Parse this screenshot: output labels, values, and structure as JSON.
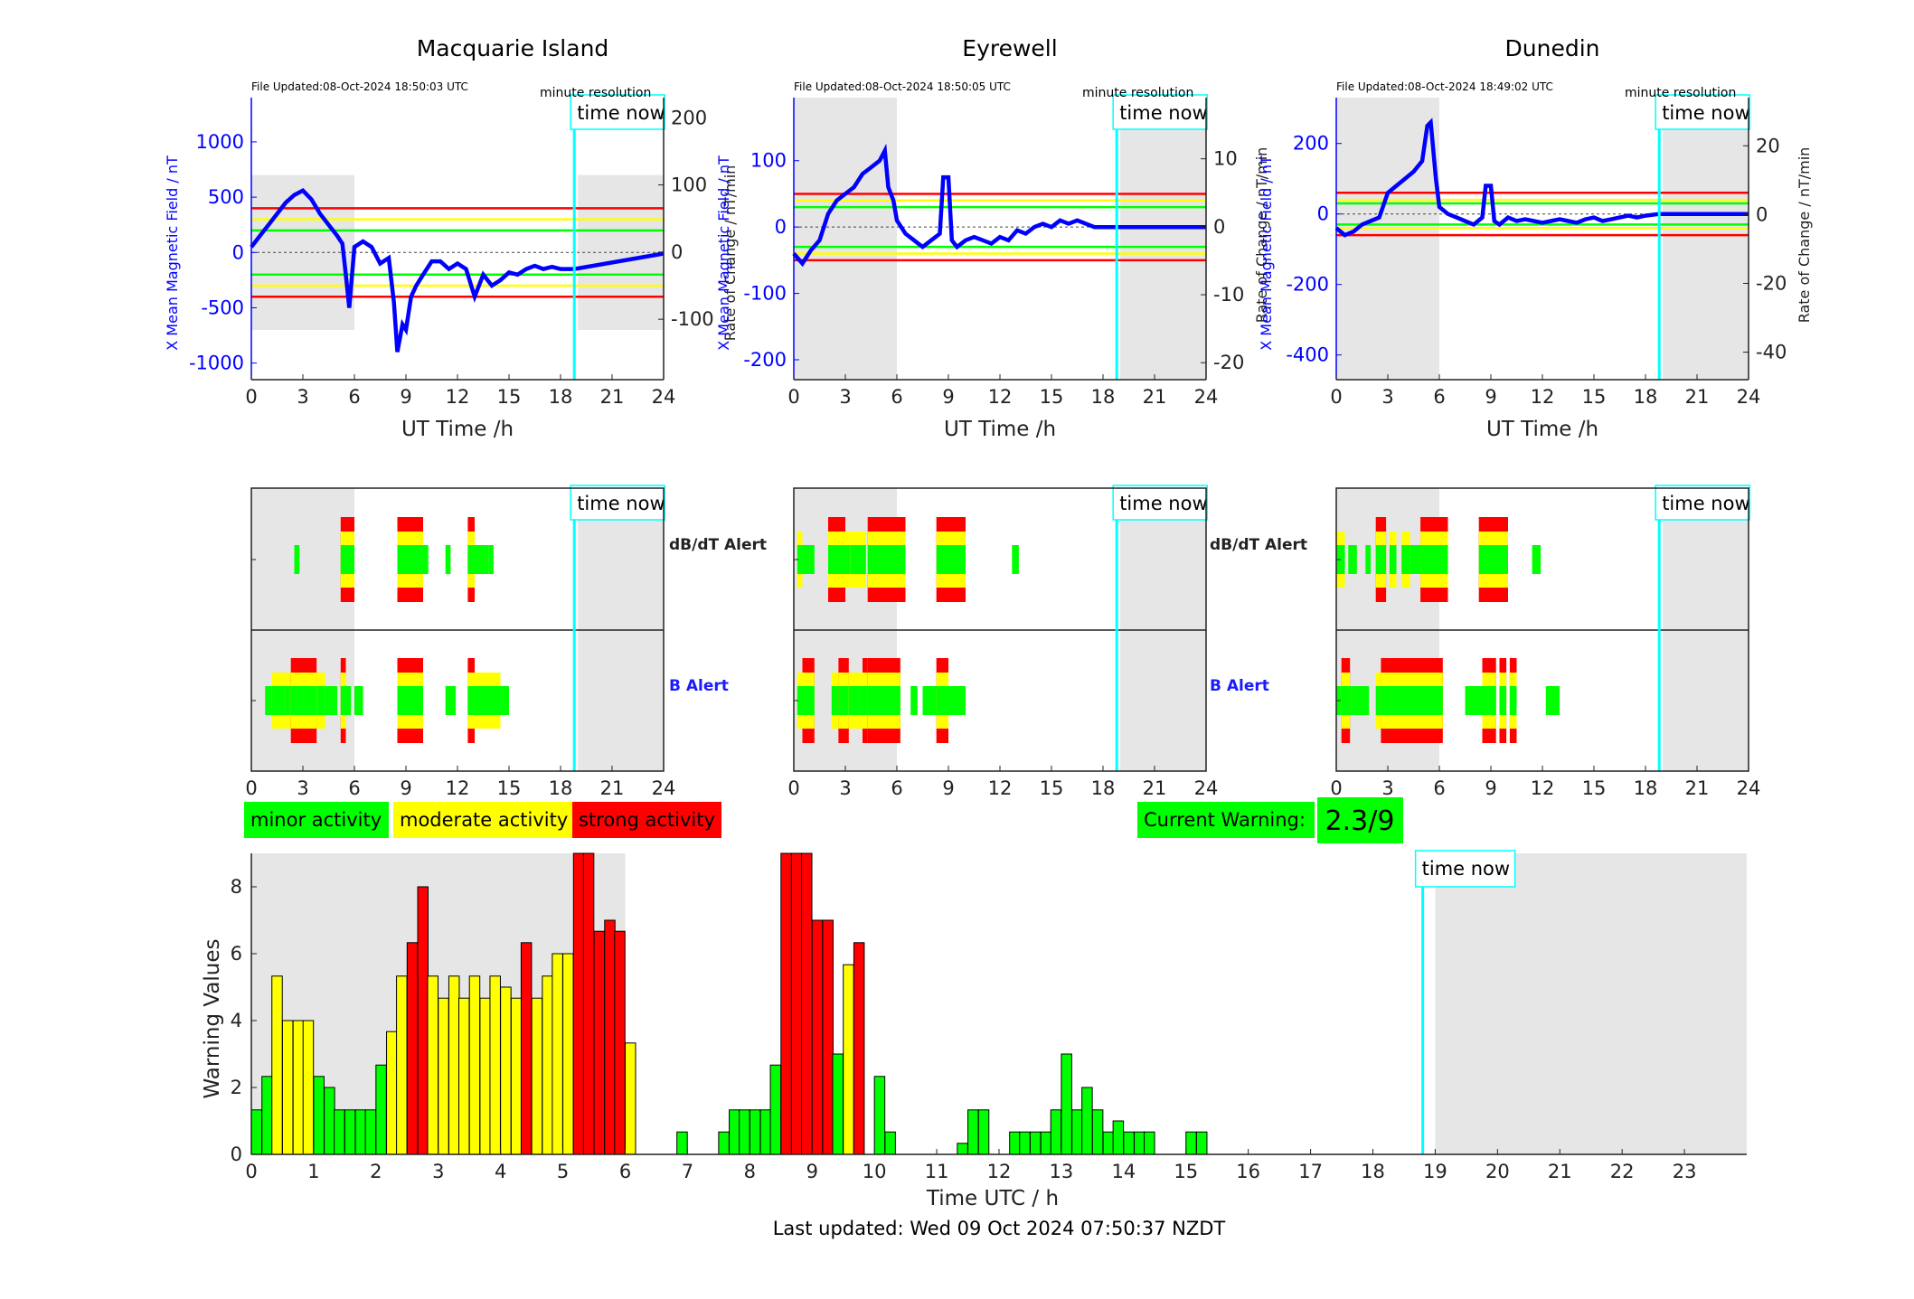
{
  "footer": {
    "last_updated": "Last updated: Wed 09 Oct 2024 07:50:37 NZDT"
  },
  "legend": {
    "minor": "minor activity",
    "moderate": "moderate activity",
    "strong": "strong activity",
    "current_label": "Current Warning:",
    "current_value": "2.3/9"
  },
  "colors": {
    "minor": "#00ff00",
    "moderate": "#ffff00",
    "strong": "#ff0000",
    "now": "#00ffff",
    "field": "#0000ff",
    "shade": "#e6e6e6"
  },
  "time_now_label": "time now",
  "minute_resolution": "minute resolution",
  "alert_labels": {
    "dbdt": "dB/dT Alert",
    "b": "B Alert"
  },
  "chart_data": [
    {
      "type": "line",
      "title": "Macquarie Island",
      "file_updated": "File Updated:08-Oct-2024 18:50:03 UTC",
      "xlabel": "UT Time /h",
      "ylabel_left": "X Mean Magnetic Field / nT",
      "ylabel_right": "Rate of Change / nT/min",
      "xlim": [
        0,
        24
      ],
      "ylim_left": [
        -1150,
        1400
      ],
      "ylim_right": [
        -190,
        230
      ],
      "yticks_left": [
        -1000,
        -500,
        0,
        500,
        1000
      ],
      "yticks_right": [
        -100,
        0,
        100,
        200
      ],
      "xticks": [
        0,
        3,
        6,
        9,
        12,
        15,
        18,
        21,
        24
      ],
      "thresholds": {
        "minor": 200,
        "moderate": 300,
        "strong": 400
      },
      "time_now": 18.8,
      "night_shade": [
        [
          0,
          6
        ],
        [
          19,
          24
        ]
      ],
      "series": [
        {
          "x": [
            0,
            0.5,
            1,
            1.5,
            2,
            2.5,
            3,
            3.5,
            4,
            4.5,
            5,
            5.3,
            5.5,
            5.7,
            6,
            6.5,
            7,
            7.5,
            8,
            8.3,
            8.5,
            8.8,
            9,
            9.3,
            9.6,
            10,
            10.5,
            11,
            11.5,
            12,
            12.5,
            13,
            13.5,
            14,
            14.5,
            15,
            15.5,
            16,
            16.5,
            17,
            17.5,
            18,
            18.8,
            24
          ],
          "y": [
            50,
            150,
            250,
            350,
            450,
            520,
            560,
            480,
            350,
            250,
            150,
            80,
            -200,
            -500,
            50,
            100,
            50,
            -100,
            -50,
            -450,
            -900,
            -650,
            -700,
            -400,
            -300,
            -200,
            -80,
            -80,
            -150,
            -100,
            -150,
            -400,
            -200,
            -300,
            -250,
            -180,
            -200,
            -150,
            -120,
            -150,
            -130,
            -150,
            -150,
            -10
          ]
        }
      ]
    },
    {
      "type": "line",
      "title": "Eyrewell",
      "file_updated": "File Updated:08-Oct-2024 18:50:05 UTC",
      "xlabel": "UT Time /h",
      "ylabel_left": "X Mean Magnetic Field / nT",
      "ylabel_right": "Rate of Change / nT/min",
      "xlim": [
        0,
        24
      ],
      "ylim_left": [
        -230,
        195
      ],
      "ylim_right": [
        -22.5,
        19
      ],
      "yticks_left": [
        -200,
        -100,
        0,
        100
      ],
      "yticks_right": [
        -20,
        -10,
        0,
        10
      ],
      "xticks": [
        0,
        3,
        6,
        9,
        12,
        15,
        18,
        21,
        24
      ],
      "thresholds": {
        "minor": 30,
        "moderate": 40,
        "strong": 50
      },
      "time_now": 18.8,
      "night_shade": [
        [
          0,
          6
        ],
        [
          19,
          24
        ]
      ],
      "series": [
        {
          "x": [
            0,
            0.5,
            1,
            1.5,
            2,
            2.5,
            3,
            3.5,
            4,
            4.5,
            5,
            5.3,
            5.5,
            5.8,
            6,
            6.5,
            7,
            7.5,
            8,
            8.5,
            8.7,
            9,
            9.2,
            9.5,
            10,
            10.5,
            11,
            11.5,
            12,
            12.5,
            13,
            13.5,
            14,
            14.5,
            15,
            15.5,
            16,
            16.5,
            17,
            17.5,
            18,
            18.8,
            24
          ],
          "y": [
            -40,
            -55,
            -35,
            -20,
            20,
            40,
            50,
            60,
            80,
            90,
            100,
            115,
            60,
            40,
            10,
            -10,
            -20,
            -30,
            -20,
            -10,
            75,
            75,
            -20,
            -30,
            -20,
            -15,
            -20,
            -25,
            -15,
            -20,
            -5,
            -10,
            0,
            5,
            0,
            10,
            5,
            10,
            5,
            0,
            0,
            0,
            0
          ]
        }
      ]
    },
    {
      "type": "line",
      "title": "Dunedin",
      "file_updated": "File Updated:08-Oct-2024 18:49:02 UTC",
      "xlabel": "UT Time /h",
      "ylabel_left": "X Mean Magnetic Field / nT",
      "ylabel_right": "Rate of Change / nT/min",
      "xlim": [
        0,
        24
      ],
      "ylim_left": [
        -470,
        330
      ],
      "ylim_right": [
        -48,
        34
      ],
      "yticks_left": [
        -400,
        -200,
        0,
        200
      ],
      "yticks_right": [
        -40,
        -20,
        0,
        20
      ],
      "xticks": [
        0,
        3,
        6,
        9,
        12,
        15,
        18,
        21,
        24
      ],
      "thresholds": {
        "minor": 30,
        "moderate": 40,
        "strong": 60
      },
      "time_now": 18.8,
      "night_shade": [
        [
          0,
          6
        ],
        [
          19,
          24
        ]
      ],
      "series": [
        {
          "x": [
            0,
            0.5,
            1,
            1.5,
            2,
            2.5,
            3,
            3.5,
            4,
            4.5,
            5,
            5.3,
            5.5,
            5.8,
            6,
            6.5,
            7,
            7.5,
            8,
            8.5,
            8.7,
            9,
            9.2,
            9.5,
            10,
            10.5,
            11,
            11.5,
            12,
            12.5,
            13,
            13.5,
            14,
            14.5,
            15,
            15.5,
            16,
            16.5,
            17,
            17.5,
            18,
            18.8,
            24
          ],
          "y": [
            -40,
            -60,
            -50,
            -30,
            -20,
            -10,
            60,
            80,
            100,
            120,
            150,
            250,
            260,
            100,
            20,
            0,
            -10,
            -20,
            -30,
            -10,
            80,
            80,
            -20,
            -30,
            -10,
            -20,
            -15,
            -20,
            -25,
            -20,
            -15,
            -20,
            -25,
            -15,
            -10,
            -20,
            -15,
            -10,
            -5,
            -10,
            -5,
            0,
            0
          ]
        }
      ]
    },
    {
      "type": "alert_timeline",
      "station": "Macquarie Island",
      "xticks": [
        0,
        3,
        6,
        9,
        12,
        15,
        18,
        21,
        24
      ],
      "time_now": 18.8,
      "night_shade": [
        [
          0,
          6
        ],
        [
          19,
          24
        ]
      ],
      "dbdt_alert": [
        {
          "start": 2.5,
          "end": 2.8,
          "level": 1
        },
        {
          "start": 5.2,
          "end": 6.0,
          "level": 3
        },
        {
          "start": 8.5,
          "end": 10.0,
          "level": 3
        },
        {
          "start": 10.0,
          "end": 10.3,
          "level": 1
        },
        {
          "start": 11.3,
          "end": 11.6,
          "level": 1
        },
        {
          "start": 12.6,
          "end": 13.0,
          "level": 3
        },
        {
          "start": 13.0,
          "end": 13.8,
          "level": 1
        },
        {
          "start": 13.8,
          "end": 14.1,
          "level": 1
        }
      ],
      "b_alert": [
        {
          "start": 0.8,
          "end": 1.2,
          "level": 1
        },
        {
          "start": 1.2,
          "end": 1.9,
          "level": 2
        },
        {
          "start": 1.9,
          "end": 2.3,
          "level": 2
        },
        {
          "start": 2.3,
          "end": 3.8,
          "level": 3
        },
        {
          "start": 3.8,
          "end": 4.3,
          "level": 2
        },
        {
          "start": 4.3,
          "end": 5.0,
          "level": 1
        },
        {
          "start": 5.2,
          "end": 5.5,
          "level": 3
        },
        {
          "start": 5.5,
          "end": 5.8,
          "level": 1
        },
        {
          "start": 6.0,
          "end": 6.5,
          "level": 1
        },
        {
          "start": 8.5,
          "end": 10.0,
          "level": 3
        },
        {
          "start": 11.3,
          "end": 11.9,
          "level": 1
        },
        {
          "start": 12.6,
          "end": 13.0,
          "level": 3
        },
        {
          "start": 13.0,
          "end": 14.5,
          "level": 2
        },
        {
          "start": 14.5,
          "end": 15.0,
          "level": 1
        }
      ]
    },
    {
      "type": "alert_timeline",
      "station": "Eyrewell",
      "xticks": [
        0,
        3,
        6,
        9,
        12,
        15,
        18,
        21,
        24
      ],
      "time_now": 18.8,
      "night_shade": [
        [
          0,
          6
        ],
        [
          19,
          24
        ]
      ],
      "dbdt_alert": [
        {
          "start": 0.2,
          "end": 0.5,
          "level": 2
        },
        {
          "start": 0.5,
          "end": 0.9,
          "level": 1
        },
        {
          "start": 0.9,
          "end": 1.2,
          "level": 1
        },
        {
          "start": 2.0,
          "end": 3.0,
          "level": 3
        },
        {
          "start": 3.0,
          "end": 3.3,
          "level": 2
        },
        {
          "start": 3.3,
          "end": 4.2,
          "level": 2
        },
        {
          "start": 4.3,
          "end": 4.5,
          "level": 3
        },
        {
          "start": 4.5,
          "end": 6.5,
          "level": 3
        },
        {
          "start": 8.3,
          "end": 10.0,
          "level": 3
        },
        {
          "start": 12.7,
          "end": 13.1,
          "level": 1
        }
      ],
      "b_alert": [
        {
          "start": 0.2,
          "end": 0.5,
          "level": 2
        },
        {
          "start": 0.5,
          "end": 1.2,
          "level": 3
        },
        {
          "start": 2.2,
          "end": 2.6,
          "level": 2
        },
        {
          "start": 2.6,
          "end": 3.2,
          "level": 3
        },
        {
          "start": 3.2,
          "end": 4.0,
          "level": 2
        },
        {
          "start": 4.0,
          "end": 4.3,
          "level": 3
        },
        {
          "start": 4.3,
          "end": 6.2,
          "level": 3
        },
        {
          "start": 6.8,
          "end": 7.2,
          "level": 1
        },
        {
          "start": 7.5,
          "end": 8.3,
          "level": 1
        },
        {
          "start": 8.3,
          "end": 9.0,
          "level": 3
        },
        {
          "start": 9.0,
          "end": 10.0,
          "level": 1
        }
      ]
    },
    {
      "type": "alert_timeline",
      "station": "Dunedin",
      "xticks": [
        0,
        3,
        6,
        9,
        12,
        15,
        18,
        21,
        24
      ],
      "time_now": 18.8,
      "night_shade": [
        [
          0,
          6
        ],
        [
          19,
          24
        ]
      ],
      "dbdt_alert": [
        {
          "start": 0.0,
          "end": 0.5,
          "level": 2
        },
        {
          "start": 0.7,
          "end": 1.2,
          "level": 1
        },
        {
          "start": 1.7,
          "end": 2.0,
          "level": 1
        },
        {
          "start": 2.3,
          "end": 2.9,
          "level": 3
        },
        {
          "start": 3.1,
          "end": 3.5,
          "level": 2
        },
        {
          "start": 3.8,
          "end": 4.3,
          "level": 2
        },
        {
          "start": 4.3,
          "end": 4.9,
          "level": 1
        },
        {
          "start": 4.9,
          "end": 6.5,
          "level": 3
        },
        {
          "start": 8.3,
          "end": 10.0,
          "level": 3
        },
        {
          "start": 11.4,
          "end": 11.9,
          "level": 1
        }
      ],
      "b_alert": [
        {
          "start": 0.0,
          "end": 0.3,
          "level": 1
        },
        {
          "start": 0.3,
          "end": 0.8,
          "level": 3
        },
        {
          "start": 0.8,
          "end": 1.9,
          "level": 1
        },
        {
          "start": 2.3,
          "end": 2.6,
          "level": 2
        },
        {
          "start": 2.6,
          "end": 6.2,
          "level": 3
        },
        {
          "start": 7.5,
          "end": 8.5,
          "level": 1
        },
        {
          "start": 8.5,
          "end": 9.3,
          "level": 3
        },
        {
          "start": 9.5,
          "end": 9.9,
          "level": 3
        },
        {
          "start": 10.1,
          "end": 10.5,
          "level": 3
        },
        {
          "start": 12.2,
          "end": 13.0,
          "level": 1
        }
      ]
    },
    {
      "type": "bar",
      "xlabel": "Time UTC / h",
      "ylabel": "Warning Values",
      "xlim": [
        0,
        24
      ],
      "ylim": [
        0,
        9
      ],
      "xticks": [
        0,
        1,
        2,
        3,
        4,
        5,
        6,
        7,
        8,
        9,
        10,
        11,
        12,
        13,
        14,
        15,
        16,
        17,
        18,
        19,
        20,
        21,
        22,
        23
      ],
      "yticks": [
        0,
        2,
        4,
        6,
        8
      ],
      "bin_width_h": 0.1667,
      "time_now": 18.8,
      "night_shade": [
        [
          0,
          6
        ],
        [
          19,
          24
        ]
      ],
      "level_rule": "green < 2.4 <= yellow (or moderate) ; red for strong bins",
      "x": [
        0.0,
        0.17,
        0.33,
        0.5,
        0.67,
        0.83,
        1.0,
        1.17,
        1.33,
        1.5,
        1.67,
        1.83,
        2.0,
        2.17,
        2.33,
        2.5,
        2.67,
        2.83,
        3.0,
        3.17,
        3.33,
        3.5,
        3.67,
        3.83,
        4.0,
        4.17,
        4.33,
        4.5,
        4.67,
        4.83,
        5.0,
        5.17,
        5.33,
        5.5,
        5.67,
        5.83,
        6.0,
        6.83,
        7.5,
        7.67,
        7.83,
        8.0,
        8.17,
        8.33,
        8.5,
        8.67,
        8.83,
        9.0,
        9.17,
        9.33,
        9.5,
        9.67,
        10.0,
        10.17,
        11.33,
        11.5,
        11.67,
        12.17,
        12.33,
        12.5,
        12.67,
        12.83,
        13.0,
        13.17,
        13.33,
        13.5,
        13.67,
        13.83,
        14.0,
        14.17,
        14.33,
        15.0,
        15.17
      ],
      "values": [
        1.33,
        2.33,
        5.33,
        4.0,
        4.0,
        4.0,
        2.33,
        2.0,
        1.33,
        1.33,
        1.33,
        1.33,
        2.67,
        3.67,
        5.33,
        6.33,
        8.0,
        5.33,
        4.67,
        5.33,
        4.67,
        5.33,
        4.67,
        5.33,
        5.0,
        4.67,
        6.33,
        4.67,
        5.33,
        6.0,
        6.0,
        9.0,
        9.0,
        6.67,
        7.0,
        6.67,
        3.33,
        0.67,
        0.67,
        1.33,
        1.33,
        1.33,
        1.33,
        2.67,
        9.0,
        9.0,
        9.0,
        7.0,
        7.0,
        3.0,
        5.67,
        6.33,
        2.33,
        0.67,
        0.33,
        1.33,
        1.33,
        0.67,
        0.67,
        0.67,
        0.67,
        1.33,
        3.0,
        1.33,
        2.0,
        1.33,
        0.67,
        1.0,
        0.67,
        0.67,
        0.67,
        0.67,
        0.67
      ],
      "levels": [
        1,
        1,
        2,
        2,
        2,
        2,
        1,
        1,
        1,
        1,
        1,
        1,
        1,
        2,
        2,
        3,
        3,
        2,
        2,
        2,
        2,
        2,
        2,
        2,
        2,
        2,
        3,
        2,
        2,
        2,
        2,
        3,
        3,
        3,
        3,
        3,
        2,
        1,
        1,
        1,
        1,
        1,
        1,
        1,
        3,
        3,
        3,
        3,
        3,
        1,
        2,
        3,
        1,
        1,
        1,
        1,
        1,
        1,
        1,
        1,
        1,
        1,
        1,
        1,
        1,
        1,
        1,
        1,
        1,
        1,
        1,
        1,
        1
      ]
    }
  ]
}
